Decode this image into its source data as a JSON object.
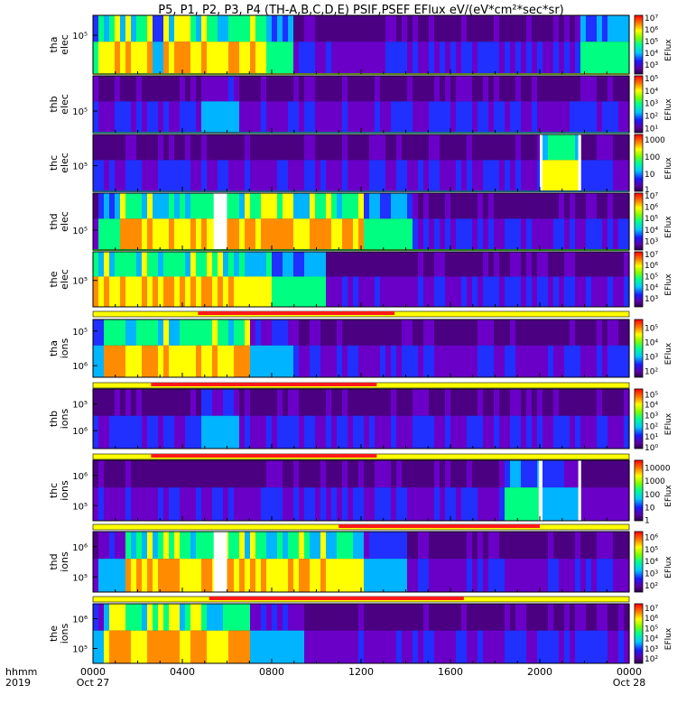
{
  "title": "P5, P1, P2, P3, P4 (TH-A,B,C,D,E) PSIF,PSEF EFlux eV/(eV*cm²*sec*sr)",
  "chart_data": {
    "type": "heatmap",
    "colormap": "rainbow (purple-blue-cyan-green-yellow-red)",
    "x_axis": {
      "label_lines": [
        "hhmm",
        "2019"
      ],
      "ticks": [
        "0000",
        "0400",
        "0800",
        "1200",
        "1600",
        "2000",
        "0000"
      ],
      "tick_hours": [
        0,
        4,
        8,
        12,
        16,
        20,
        24
      ],
      "date_labels": [
        {
          "text": "Oct 27",
          "hour": 0
        },
        {
          "text": "Oct 28",
          "hour": 24
        }
      ],
      "range_hours": [
        0,
        24
      ]
    },
    "panels": [
      {
        "id": "tha-elec",
        "label_lines": [
          "tha",
          "elec"
        ],
        "y_ticks": [
          {
            "text": "10⁵",
            "frac": 0.34
          }
        ],
        "colorbar": {
          "unit": "EFlux",
          "labels": [
            "10⁷",
            "10⁶",
            "10⁵",
            "10⁴",
            "10³"
          ],
          "label_fracs": [
            0.0,
            0.2,
            0.4,
            0.6,
            0.8
          ]
        },
        "bright_intervals": [
          [
            0.0,
            9.0,
            4
          ],
          [
            21.7,
            24.0,
            4
          ]
        ],
        "hot_intervals": [
          [
            0.3,
            7.8,
            5
          ]
        ],
        "dim_holes": [
          [
            2.75,
            3.15
          ]
        ],
        "white_gaps": [],
        "bottom_line": "#bfff40"
      },
      {
        "id": "thb-elec",
        "label_lines": [
          "thb",
          "elec"
        ],
        "y_ticks": [
          {
            "text": "10⁵",
            "frac": 0.62
          }
        ],
        "colorbar": {
          "unit": "EFlux",
          "labels": [
            "10⁵",
            "10⁴",
            "10³",
            "10²",
            "10¹"
          ],
          "label_fracs": [
            0.0,
            0.22,
            0.44,
            0.66,
            0.88
          ]
        },
        "bright_intervals": [
          [
            4.75,
            6.6,
            3
          ]
        ],
        "hot_intervals": [],
        "dim_holes": [],
        "white_gaps": [],
        "bottom_line": "#40e0f0"
      },
      {
        "id": "thc-elec",
        "label_lines": [
          "thc",
          "elec"
        ],
        "y_ticks": [
          {
            "text": "10⁵",
            "frac": 0.55
          }
        ],
        "colorbar": {
          "unit": "EFlux",
          "labels": [
            "1000",
            "100",
            "10",
            "1"
          ],
          "label_fracs": [
            0.05,
            0.35,
            0.65,
            0.92
          ]
        },
        "bright_intervals": [
          [
            20.1,
            21.7,
            5
          ]
        ],
        "hot_intervals": [],
        "dim_holes": [],
        "white_gaps": [
          [
            20.0,
            20.12
          ],
          [
            21.72,
            21.85
          ]
        ],
        "bottom_line": "#40b0ff"
      },
      {
        "id": "thd-elec",
        "label_lines": [
          "thd",
          "elec"
        ],
        "y_ticks": [
          {
            "text": "10⁵",
            "frac": 0.65
          }
        ],
        "colorbar": {
          "unit": "EFlux",
          "labels": [
            "10⁷",
            "10⁶",
            "10⁵",
            "10⁴",
            "10³"
          ],
          "label_fracs": [
            0.0,
            0.2,
            0.4,
            0.6,
            0.8
          ]
        },
        "bright_intervals": [
          [
            0.3,
            14.3,
            4
          ]
        ],
        "hot_intervals": [
          [
            1.2,
            12.0,
            5
          ]
        ],
        "dim_holes": [],
        "white_gaps": [
          [
            5.4,
            6.0
          ]
        ],
        "bottom_line": "#40f040"
      },
      {
        "id": "the-elec",
        "label_lines": [
          "the",
          "elec"
        ],
        "y_ticks": [
          {
            "text": "10⁵",
            "frac": 0.52
          }
        ],
        "colorbar": {
          "unit": "EFlux",
          "labels": [
            "10⁷",
            "10⁶",
            "10⁵",
            "10⁴",
            "10³"
          ],
          "label_fracs": [
            0.0,
            0.2,
            0.4,
            0.6,
            0.8
          ]
        },
        "bright_intervals": [
          [
            0.0,
            10.5,
            4
          ]
        ],
        "hot_intervals": [
          [
            0.0,
            8.0,
            5
          ]
        ],
        "dim_holes": [],
        "white_gaps": [],
        "bottom_line": null
      },
      {
        "id": "tha-ions",
        "label_lines": [
          "tha",
          "ions"
        ],
        "y_ticks": [
          {
            "text": "10⁵",
            "frac": 0.2
          },
          {
            "text": "10⁶",
            "frac": 0.8
          }
        ],
        "colorbar": {
          "unit": "EFlux",
          "labels": [
            "10⁵",
            "10⁴",
            "10³",
            "10²"
          ],
          "label_fracs": [
            0.1,
            0.35,
            0.6,
            0.85
          ]
        },
        "bright_intervals": [
          [
            0.0,
            9.0,
            3
          ],
          [
            23.0,
            24.0,
            2
          ]
        ],
        "hot_intervals": [
          [
            0.5,
            7.0,
            5
          ]
        ],
        "dim_holes": [],
        "white_gaps": [],
        "bottom_line": null
      },
      {
        "id": "thb-ions",
        "label_lines": [
          "thb",
          "ions"
        ],
        "y_ticks": [
          {
            "text": "10⁵",
            "frac": 0.25
          },
          {
            "text": "10⁶",
            "frac": 0.7
          }
        ],
        "colorbar": {
          "unit": "EFlux",
          "labels": [
            "10⁵",
            "10⁴",
            "10³",
            "10²",
            "10¹",
            "10⁰"
          ],
          "label_fracs": [
            0.05,
            0.22,
            0.4,
            0.58,
            0.76,
            0.94
          ]
        },
        "bright_intervals": [
          [
            4.75,
            6.6,
            3
          ]
        ],
        "hot_intervals": [],
        "dim_holes": [],
        "white_gaps": [],
        "bottom_line": null
      },
      {
        "id": "thc-ions",
        "label_lines": [
          "thc",
          "ions"
        ],
        "y_ticks": [
          {
            "text": "10⁶",
            "frac": 0.25
          },
          {
            "text": "10⁵",
            "frac": 0.75
          }
        ],
        "colorbar": {
          "unit": "EFlux",
          "labels": [
            "10000",
            "1000",
            "100",
            "10",
            "1"
          ],
          "label_fracs": [
            0.08,
            0.3,
            0.52,
            0.74,
            0.95
          ]
        },
        "bright_intervals": [
          [
            20.1,
            21.7,
            3
          ],
          [
            18.5,
            20.0,
            4
          ]
        ],
        "hot_intervals": [],
        "dim_holes": [],
        "white_gaps": [
          [
            19.95,
            20.12
          ],
          [
            21.72,
            21.85
          ]
        ],
        "bottom_line": null
      },
      {
        "id": "thd-ions",
        "label_lines": [
          "thd",
          "ions"
        ],
        "y_ticks": [
          {
            "text": "10⁶",
            "frac": 0.25
          },
          {
            "text": "10⁵",
            "frac": 0.75
          }
        ],
        "colorbar": {
          "unit": "EFlux",
          "labels": [
            "10⁶",
            "10⁵",
            "10⁴",
            "10³",
            "10²"
          ],
          "label_fracs": [
            0.05,
            0.25,
            0.45,
            0.65,
            0.85
          ]
        },
        "bright_intervals": [
          [
            0.3,
            14.0,
            3
          ]
        ],
        "hot_intervals": [
          [
            1.5,
            12.0,
            5
          ]
        ],
        "dim_holes": [
          [
            8.4,
            8.6
          ]
        ],
        "white_gaps": [
          [
            5.4,
            6.0
          ]
        ],
        "bottom_line": null
      },
      {
        "id": "the-ions",
        "label_lines": [
          "the",
          "ions"
        ],
        "y_ticks": [
          {
            "text": "10⁶",
            "frac": 0.25
          },
          {
            "text": "10⁵",
            "frac": 0.75
          }
        ],
        "colorbar": {
          "unit": "EFlux",
          "labels": [
            "10⁷",
            "10⁶",
            "10⁵",
            "10⁴",
            "10³",
            "10²"
          ],
          "label_fracs": [
            0.03,
            0.2,
            0.37,
            0.54,
            0.71,
            0.88
          ]
        },
        "bright_intervals": [
          [
            0.0,
            9.5,
            3
          ]
        ],
        "hot_intervals": [
          [
            0.5,
            7.0,
            5
          ]
        ],
        "dim_holes": [],
        "white_gaps": [],
        "bottom_line": null
      }
    ],
    "mode_bars": [
      {
        "after_panel": "the-elec",
        "red_hours": [
          4.7,
          13.5
        ]
      },
      {
        "after_panel": "tha-ions",
        "red_hours": [
          2.6,
          12.7
        ]
      },
      {
        "after_panel": "thb-ions",
        "red_hours": [
          2.6,
          12.7
        ]
      },
      {
        "after_panel": "thc-ions",
        "red_hours": [
          11.0,
          20.0
        ]
      },
      {
        "after_panel": "thd-ions",
        "red_hours": [
          5.2,
          16.6
        ]
      }
    ],
    "grid": false,
    "legend": "colorbars at right of each panel"
  }
}
